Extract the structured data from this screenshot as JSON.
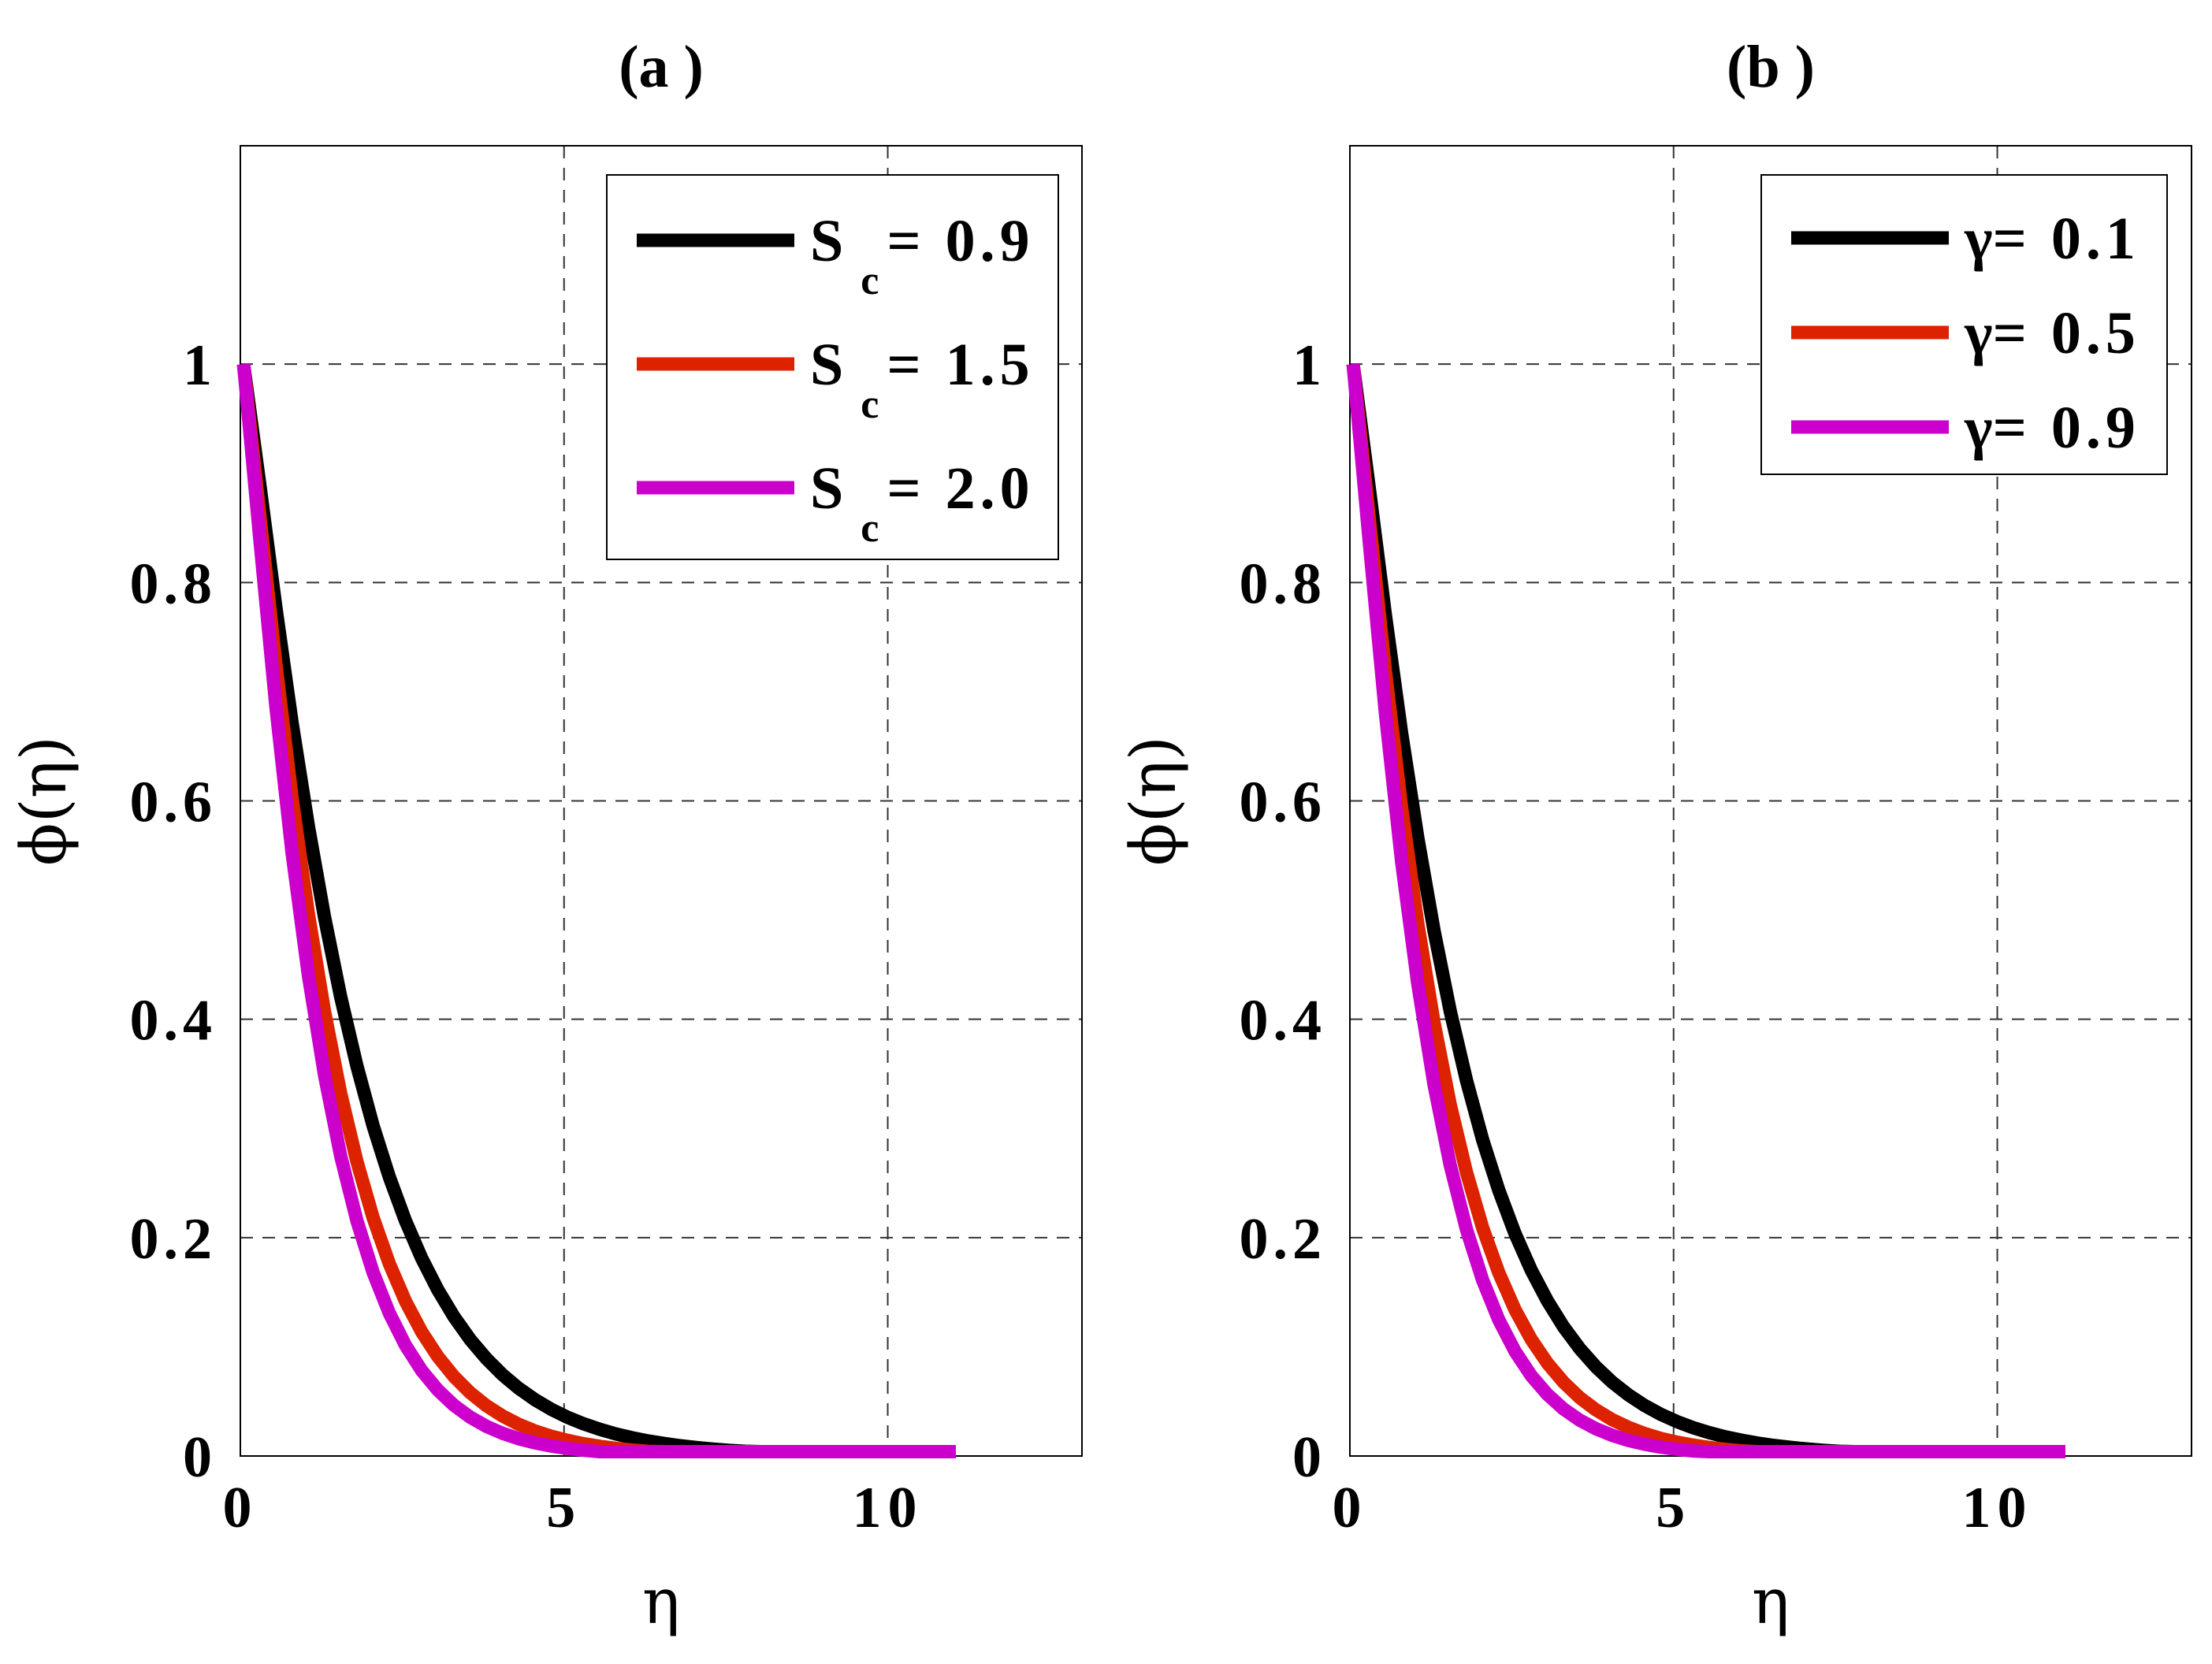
{
  "chart_data": [
    {
      "type": "line",
      "title": "(a )",
      "xlabel": "η",
      "ylabel": "ϕ(η)",
      "xlim": [
        0,
        13
      ],
      "ylim": [
        0,
        1.2
      ],
      "xticks": [
        0,
        5,
        10
      ],
      "xtick_labels": [
        "0",
        "5",
        "10"
      ],
      "yticks": [
        0,
        0.2,
        0.4,
        0.6,
        0.8,
        1
      ],
      "ytick_labels": [
        "0",
        "0.2",
        "0.4",
        "0.6",
        "0.8",
        "1"
      ],
      "grid": true,
      "legend_position": "top-right",
      "legend_param": "S",
      "legend_sub": "c",
      "series": [
        {
          "name": "S c = 0.9",
          "value": "0.9",
          "color": "#000000",
          "decay": 0.55,
          "x": [
            0,
            0.25,
            0.5,
            0.75,
            1,
            1.25,
            1.5,
            1.75,
            2,
            2.25,
            2.5,
            2.75,
            3,
            3.25,
            3.5,
            3.75,
            4,
            4.25,
            4.5,
            4.75,
            5,
            5.25,
            5.5,
            5.75,
            6,
            6.25,
            6.5,
            6.75,
            7,
            7.25,
            7.5,
            7.75,
            8,
            8.25,
            8.5,
            8.75,
            9,
            9.25,
            9.5,
            9.75,
            10,
            10.25,
            10.5,
            10.75,
            11
          ]
        },
        {
          "name": "S c = 1.5",
          "value": "1.5",
          "color": "#dd2200",
          "decay": 0.7
        },
        {
          "name": "S c = 2.0",
          "value": "2.0",
          "color": "#cc00cc",
          "decay": 0.82
        }
      ]
    },
    {
      "type": "line",
      "title": "(b )",
      "xlabel": "η",
      "ylabel": "ϕ(η)",
      "xlim": [
        0,
        13
      ],
      "ylim": [
        0,
        1.2
      ],
      "xticks": [
        0,
        5,
        10
      ],
      "xtick_labels": [
        "0",
        "5",
        "10"
      ],
      "yticks": [
        0,
        0.2,
        0.4,
        0.6,
        0.8,
        1
      ],
      "ytick_labels": [
        "0",
        "0.2",
        "0.4",
        "0.6",
        "0.8",
        "1"
      ],
      "grid": true,
      "legend_position": "top-right",
      "legend_param": "γ",
      "legend_sub": "",
      "series": [
        {
          "name": "γ= 0.1",
          "value": "0.1",
          "color": "#000000",
          "decay": 0.57
        },
        {
          "name": "γ= 0.5",
          "value": "0.5",
          "color": "#dd2200",
          "decay": 0.72
        },
        {
          "name": "γ= 0.9",
          "value": "0.9",
          "color": "#cc00cc",
          "decay": 0.84
        }
      ]
    }
  ]
}
